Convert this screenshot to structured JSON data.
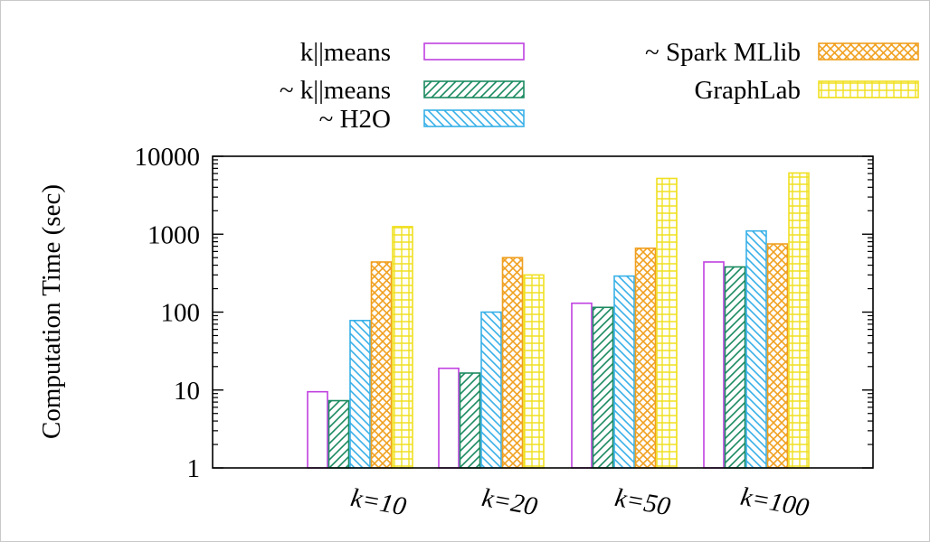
{
  "chart_data": {
    "type": "bar",
    "title": "",
    "xlabel": "",
    "ylabel": "Computation Time (sec)",
    "yscale": "log",
    "ylim": [
      1,
      10000
    ],
    "yticks": [
      1,
      10,
      100,
      1000,
      10000
    ],
    "ytick_labels": [
      "1",
      "10",
      "100",
      "1000",
      "10000"
    ],
    "categories": [
      "k=10",
      "k=20",
      "k=50",
      "k=100"
    ],
    "legend_placement": "top",
    "series": [
      {
        "name": "k||means",
        "pattern": "none",
        "color": "#c040e0",
        "values": [
          9.5,
          19,
          130,
          440
        ]
      },
      {
        "name": "~ k||means",
        "pattern": "diag-right",
        "color": "#1a8a60",
        "values": [
          7.3,
          16.5,
          115,
          380
        ]
      },
      {
        "name": "~ H2O",
        "pattern": "diag-left",
        "color": "#38b0e8",
        "values": [
          78,
          100,
          290,
          1100
        ]
      },
      {
        "name": "~ Spark MLlib",
        "pattern": "cross",
        "color": "#f0a020",
        "values": [
          440,
          500,
          660,
          750
        ]
      },
      {
        "name": "GraphLab",
        "pattern": "grid",
        "color": "#f0e020",
        "values": [
          1250,
          300,
          5200,
          6100
        ]
      }
    ]
  }
}
